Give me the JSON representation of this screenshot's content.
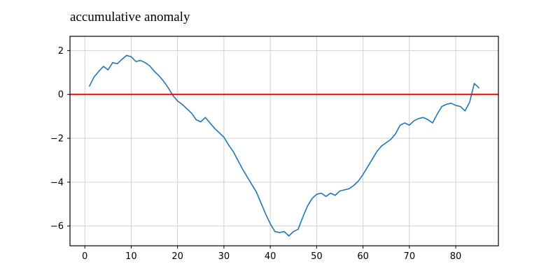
{
  "figure": {
    "background": "#ffffff"
  },
  "chart_data": {
    "type": "line",
    "title": "accumulative anomaly",
    "xlabel": "",
    "ylabel": "",
    "grid": true,
    "grid_color": "#cccccc",
    "legend": "none",
    "xlim": [
      -3.2,
      89.2
    ],
    "ylim": [
      -6.9,
      2.65
    ],
    "xticks": [
      0,
      10,
      20,
      30,
      40,
      50,
      60,
      70,
      80
    ],
    "yticks": [
      2,
      0,
      -2,
      -4,
      -6
    ],
    "zero_line": {
      "y": 0,
      "color": "#ff0000",
      "width": 2
    },
    "x": [
      1,
      2,
      3,
      4,
      5,
      6,
      7,
      8,
      9,
      10,
      11,
      12,
      13,
      14,
      15,
      16,
      17,
      18,
      19,
      20,
      21,
      22,
      23,
      24,
      25,
      26,
      27,
      28,
      29,
      30,
      31,
      32,
      33,
      34,
      35,
      36,
      37,
      38,
      39,
      40,
      41,
      42,
      43,
      44,
      45,
      46,
      47,
      48,
      49,
      50,
      51,
      52,
      53,
      54,
      55,
      56,
      57,
      58,
      59,
      60,
      61,
      62,
      63,
      64,
      65,
      66,
      67,
      68,
      69,
      70,
      71,
      72,
      73,
      74,
      75,
      76,
      77,
      78,
      79,
      80,
      81,
      82,
      83,
      84,
      85
    ],
    "series": [
      {
        "name": "accumulative-anomaly",
        "color": "#1f77b4",
        "width": 1.6,
        "values": [
          0.38,
          0.8,
          1.05,
          1.28,
          1.12,
          1.45,
          1.4,
          1.6,
          1.78,
          1.72,
          1.5,
          1.55,
          1.45,
          1.3,
          1.05,
          0.85,
          0.6,
          0.3,
          -0.05,
          -0.3,
          -0.45,
          -0.65,
          -0.85,
          -1.15,
          -1.25,
          -1.05,
          -1.3,
          -1.55,
          -1.75,
          -1.95,
          -2.3,
          -2.6,
          -3.0,
          -3.4,
          -3.75,
          -4.1,
          -4.45,
          -4.95,
          -5.45,
          -5.9,
          -6.25,
          -6.3,
          -6.25,
          -6.45,
          -6.25,
          -6.15,
          -5.6,
          -5.1,
          -4.75,
          -4.55,
          -4.5,
          -4.65,
          -4.5,
          -4.6,
          -4.4,
          -4.35,
          -4.3,
          -4.15,
          -3.95,
          -3.65,
          -3.3,
          -2.95,
          -2.6,
          -2.35,
          -2.2,
          -2.05,
          -1.8,
          -1.4,
          -1.3,
          -1.4,
          -1.2,
          -1.1,
          -1.05,
          -1.15,
          -1.3,
          -0.9,
          -0.55,
          -0.45,
          -0.4,
          -0.5,
          -0.55,
          -0.75,
          -0.35,
          0.5,
          0.3
        ]
      }
    ]
  }
}
